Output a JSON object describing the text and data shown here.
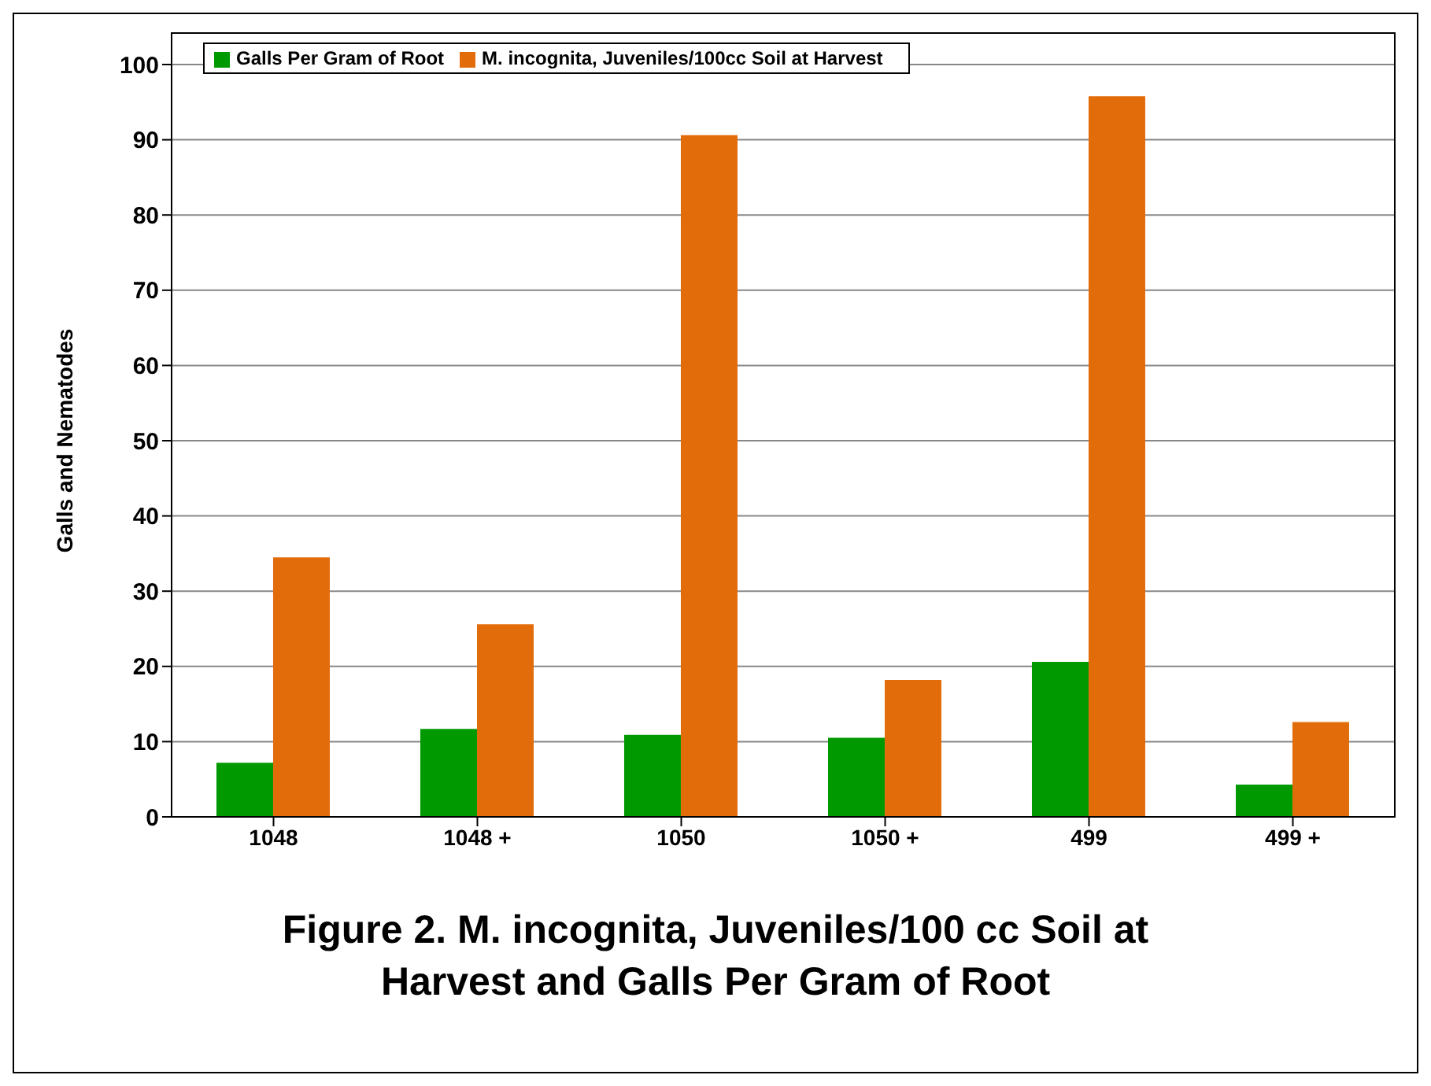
{
  "chart_data": {
    "type": "bar",
    "title": "Figure 2. M. incognita, Juveniles/100 cc Soil at Harvest and Galls Per Gram of Root",
    "ylabel": "Galls and Nematodes",
    "categories": [
      "1048",
      "1048 +",
      "1050",
      "1050 +",
      "499",
      "499 +"
    ],
    "series": [
      {
        "name": "Galls Per Gram of Root",
        "color": "#009900",
        "values": [
          7.2,
          11.7,
          10.9,
          10.5,
          20.6,
          4.3
        ]
      },
      {
        "name": "M. incognita, Juveniles/100cc Soil at Harvest",
        "color": "#e36c0a",
        "values": [
          34.5,
          25.6,
          90.6,
          18.2,
          95.8,
          12.6
        ]
      }
    ],
    "ylim": [
      0,
      100
    ],
    "yticks": [
      0,
      10,
      20,
      30,
      40,
      50,
      60,
      70,
      80,
      90,
      100
    ],
    "grid": "y",
    "legend": "top left"
  }
}
